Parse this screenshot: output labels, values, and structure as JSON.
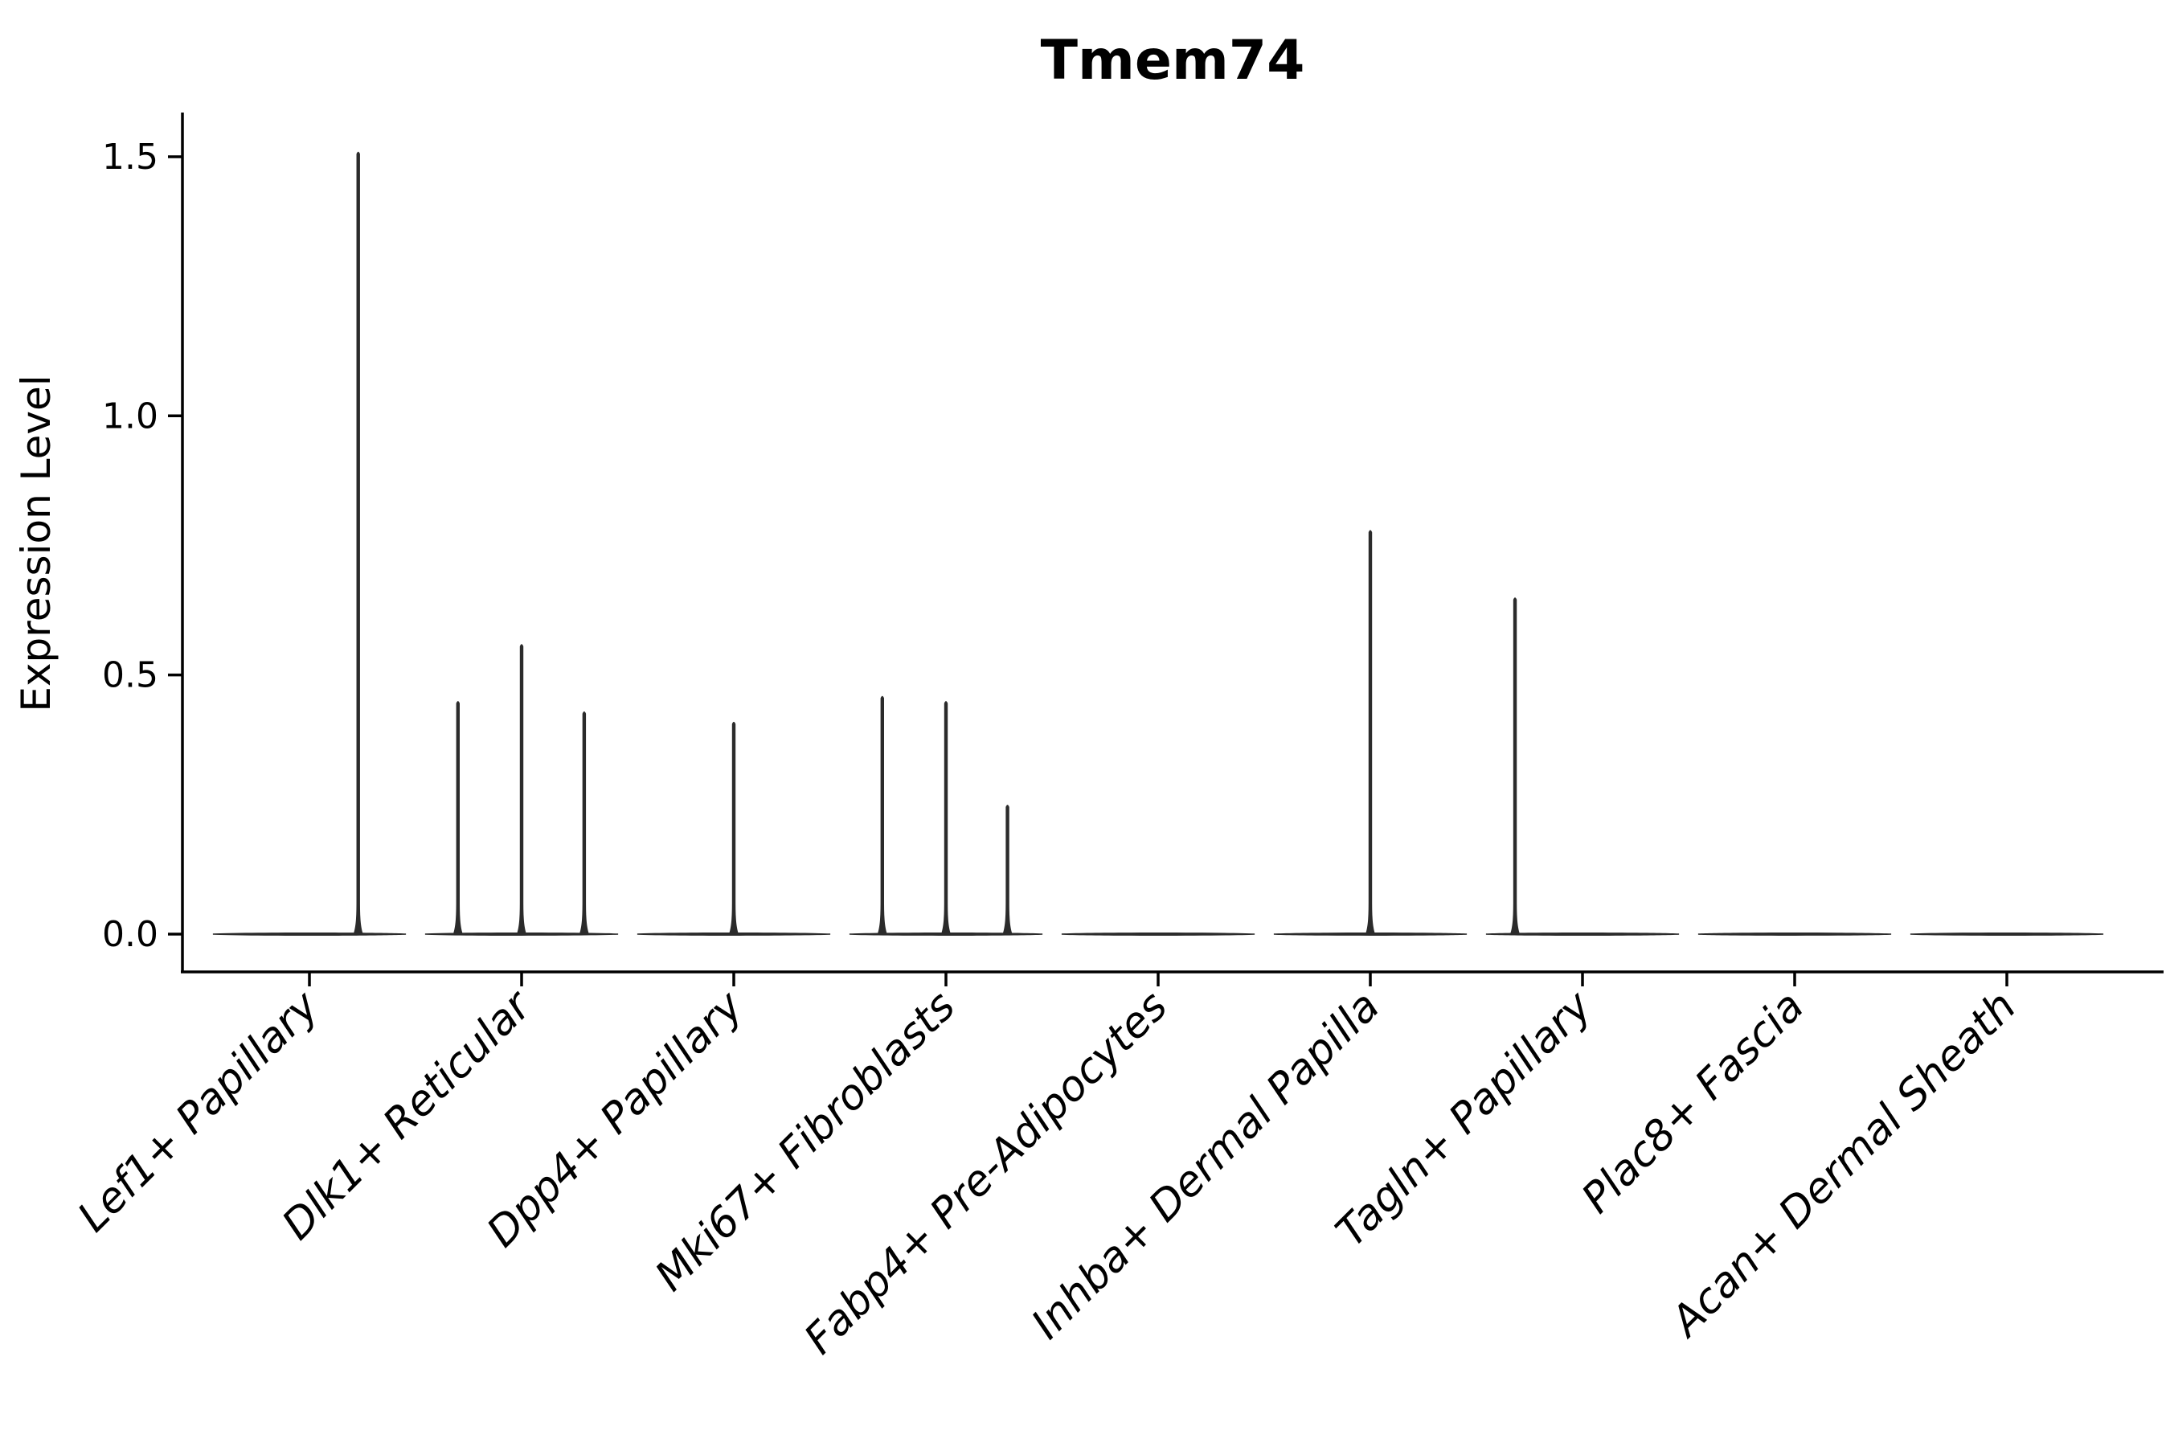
{
  "figure": {
    "title": "Tmem74",
    "ylabel": "Expression Level"
  },
  "chart_data": {
    "type": "violin",
    "title": "Tmem74",
    "xlabel": "",
    "ylabel": "Expression Level",
    "yticks": [
      0.0,
      0.5,
      1.0,
      1.5
    ],
    "ytick_labels": [
      "0.0",
      "0.5",
      "1.0",
      "1.5"
    ],
    "ylim": [
      -0.073,
      1.585
    ],
    "grid": false,
    "legend": "none",
    "categories": [
      "Lef1+ Papillary",
      "Dlk1+ Reticular",
      "Dpp4+ Papillary",
      "Mki67+ Fibroblasts",
      "Fabp4+ Pre-Adipocytes",
      "Inhba+ Dermal Papilla",
      "Tagln+ Papillary",
      "Plac8+ Fascia",
      "Acan+ Dermal Sheath"
    ],
    "violins": [
      {
        "category": "Lef1+ Papillary",
        "baseline_value": 0.0,
        "spikes": [
          {
            "offset_frac": 0.23,
            "value": 1.51
          }
        ]
      },
      {
        "category": "Dlk1+ Reticular",
        "baseline_value": 0.0,
        "spikes": [
          {
            "offset_frac": -0.3,
            "value": 0.45
          },
          {
            "offset_frac": 0.0,
            "value": 0.56
          },
          {
            "offset_frac": 0.295,
            "value": 0.43
          }
        ]
      },
      {
        "category": "Dpp4+ Papillary",
        "baseline_value": 0.0,
        "spikes": [
          {
            "offset_frac": 0.0,
            "value": 0.41
          }
        ]
      },
      {
        "category": "Mki67+ Fibroblasts",
        "baseline_value": 0.0,
        "spikes": [
          {
            "offset_frac": -0.3,
            "value": 0.46
          },
          {
            "offset_frac": 0.0,
            "value": 0.45
          },
          {
            "offset_frac": 0.29,
            "value": 0.25
          }
        ]
      },
      {
        "category": "Fabp4+ Pre-Adipocytes",
        "baseline_value": 0.0,
        "spikes": []
      },
      {
        "category": "Inhba+ Dermal Papilla",
        "baseline_value": 0.0,
        "spikes": [
          {
            "offset_frac": 0.0,
            "value": 0.78
          }
        ]
      },
      {
        "category": "Tagln+ Papillary",
        "baseline_value": 0.0,
        "spikes": [
          {
            "offset_frac": -0.318,
            "value": 0.65
          }
        ]
      },
      {
        "category": "Plac8+ Fascia",
        "baseline_value": 0.0,
        "spikes": []
      },
      {
        "category": "Acan+ Dermal Sheath",
        "baseline_value": 0.0,
        "spikes": []
      }
    ],
    "violin_half_width_frac": 0.455,
    "colors": {
      "violin": "#2b2b2b",
      "axis": "#000000",
      "text": "#000000",
      "background": "#ffffff"
    }
  }
}
